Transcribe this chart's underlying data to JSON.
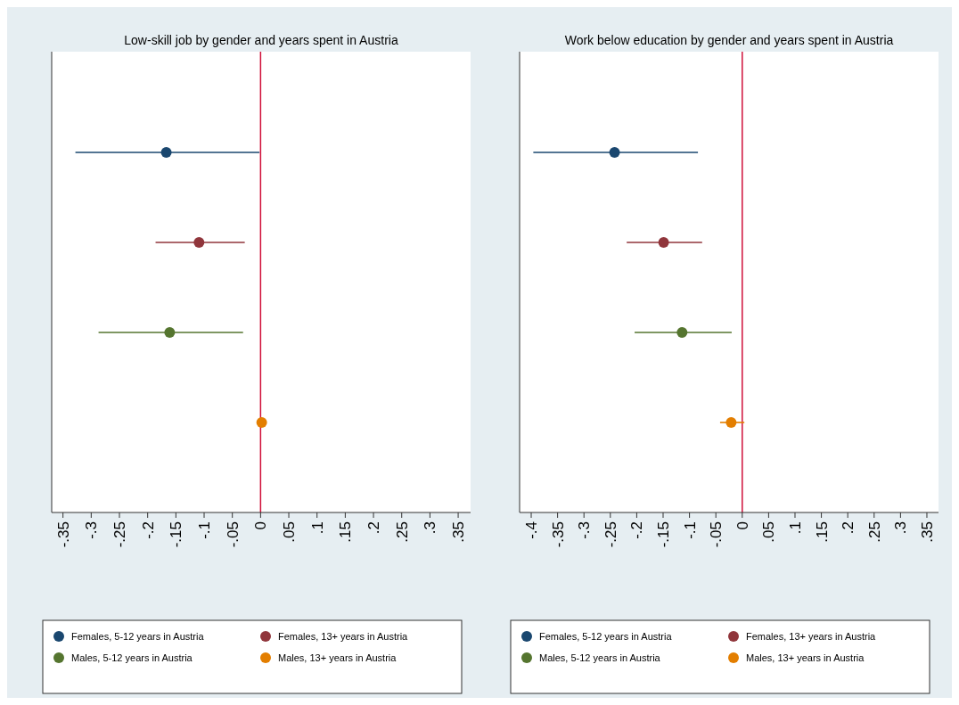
{
  "chart_data": [
    {
      "type": "scatter",
      "orientation": "horizontal",
      "title": "Low-skill job by gender and years spent in Austria",
      "categories": [
        null,
        null,
        null,
        null
      ],
      "tick_labels": "x",
      "marker": "circle",
      "legend": "bottom",
      "grid": false,
      "xlim": [
        -0.37,
        0.372
      ],
      "xticks": [
        {
          "value": -0.35,
          "label": "-.35"
        },
        {
          "value": -0.3,
          "label": "-.3"
        },
        {
          "value": -0.25,
          "label": "-.25"
        },
        {
          "value": -0.2,
          "label": "-.2"
        },
        {
          "value": -0.15,
          "label": "-.15"
        },
        {
          "value": -0.1,
          "label": "-.1"
        },
        {
          "value": -0.05,
          "label": "-.05"
        },
        0,
        {
          "value": 0.05,
          "label": ".05"
        },
        {
          "value": 0.1,
          "label": ".1"
        },
        {
          "value": 0.15,
          "label": ".15"
        },
        {
          "value": 0.2,
          "label": ".2"
        },
        {
          "value": 0.25,
          "label": ".25"
        },
        {
          "value": 0.3,
          "label": ".3"
        },
        {
          "value": 0.35,
          "label": ".35"
        }
      ],
      "ref_lines": [
        {
          "axis": "x",
          "value": 0,
          "color": "#d0103a"
        }
      ],
      "series": [
        {
          "name": "Females, 5-12 years in Austria",
          "color": "#1a476f",
          "values": [
            -0.167,
            null,
            null,
            null
          ],
          "errors": [
            [
              -0.328,
              -0.002
            ],
            null,
            null,
            null
          ]
        },
        {
          "name": "Females, 13+ years in Austria",
          "color": "#90353b",
          "values": [
            null,
            -0.109,
            null,
            null
          ],
          "errors": [
            null,
            [
              -0.186,
              -0.028
            ],
            null,
            null
          ]
        },
        {
          "name": "Males, 5-12 years in Austria",
          "color": "#55752f",
          "values": [
            null,
            null,
            -0.161,
            null
          ],
          "errors": [
            null,
            null,
            [
              -0.287,
              -0.031
            ],
            null
          ]
        },
        {
          "name": "Males, 13+ years in Austria",
          "color": "#e37e00",
          "values": [
            null,
            null,
            null,
            0.002
          ]
        }
      ]
    },
    {
      "type": "scatter",
      "orientation": "horizontal",
      "title": "Work below education by gender and years spent in Austria",
      "categories": [
        null,
        null,
        null,
        null
      ],
      "tick_labels": "x",
      "marker": "circle",
      "legend": "bottom",
      "grid": false,
      "xlim": [
        -0.422,
        0.372
      ],
      "xticks": [
        {
          "value": -0.4,
          "label": "-.4"
        },
        {
          "value": -0.35,
          "label": "-.35"
        },
        {
          "value": -0.3,
          "label": "-.3"
        },
        {
          "value": -0.25,
          "label": "-.25"
        },
        {
          "value": -0.2,
          "label": "-.2"
        },
        {
          "value": -0.15,
          "label": "-.15"
        },
        {
          "value": -0.1,
          "label": "-.1"
        },
        {
          "value": -0.05,
          "label": "-.05"
        },
        0,
        {
          "value": 0.05,
          "label": ".05"
        },
        {
          "value": 0.1,
          "label": ".1"
        },
        {
          "value": 0.15,
          "label": ".15"
        },
        {
          "value": 0.2,
          "label": ".2"
        },
        {
          "value": 0.25,
          "label": ".25"
        },
        {
          "value": 0.3,
          "label": ".3"
        },
        {
          "value": 0.35,
          "label": ".35"
        }
      ],
      "ref_lines": [
        {
          "axis": "x",
          "value": 0,
          "color": "#d0103a"
        }
      ],
      "series": [
        {
          "name": "Females, 5-12 years in Austria",
          "color": "#1a476f",
          "values": [
            -0.242,
            null,
            null,
            null
          ],
          "errors": [
            [
              -0.396,
              -0.084
            ],
            null,
            null,
            null
          ]
        },
        {
          "name": "Females, 13+ years in Austria",
          "color": "#90353b",
          "values": [
            null,
            -0.149,
            null,
            null
          ],
          "errors": [
            null,
            [
              -0.219,
              -0.076
            ],
            null,
            null
          ]
        },
        {
          "name": "Males, 5-12 years in Austria",
          "color": "#55752f",
          "values": [
            null,
            null,
            -0.114,
            null
          ],
          "errors": [
            null,
            null,
            [
              -0.204,
              -0.02
            ],
            null
          ]
        },
        {
          "name": "Males, 13+ years in Austria",
          "color": "#e37e00",
          "values": [
            null,
            null,
            null,
            -0.021
          ],
          "errors": [
            null,
            null,
            null,
            [
              -0.042,
              0.004
            ]
          ]
        }
      ]
    }
  ]
}
